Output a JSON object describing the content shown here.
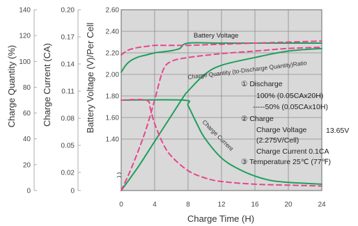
{
  "colors": {
    "grid_bg": "#d9d9d9",
    "grid_line": "#8a8a8a",
    "green": "#1f9e5c",
    "pink": "#e8458b"
  },
  "chart_data": {
    "type": "line",
    "x_axis": {
      "label": "Charge Time (H)",
      "ticks": [
        "0",
        "4",
        "8",
        "12",
        "16",
        "20",
        "24"
      ],
      "range": [
        0,
        24
      ]
    },
    "y_axes": [
      {
        "id": "charge_quantity",
        "label": "Charge Quantity (%)",
        "ticks": [
          "0",
          "20",
          "40",
          "60",
          "80",
          "100",
          "120",
          "140"
        ],
        "range": [
          0,
          140
        ]
      },
      {
        "id": "charge_current",
        "label": "Charge Current (CA)",
        "ticks": [
          "0",
          "0.02",
          "0.05",
          "0.08",
          "0.11",
          "0.14",
          "0.17",
          "0.20"
        ],
        "range": [
          0,
          0.2
        ]
      },
      {
        "id": "battery_voltage",
        "label": "Battery Voltage (V)/Per Cell",
        "ticks": [
          "1.40",
          "1.60",
          "1.80",
          "2.00",
          "2.20",
          "2.40",
          "2.60"
        ],
        "range": [
          1.4,
          2.6
        ]
      }
    ],
    "curve_labels": {
      "battery_voltage": "Battery Voltage",
      "charge_quantity": "Charge Quantity (to-Discharge Quantity)Ratio",
      "charge_current": "Charge Current"
    },
    "annotations": [
      "① Discharge",
      "100% (0.05CAx20H)",
      "-----50% (0.05CAx10H)",
      "② Charge",
      "Charge Voltage",
      "13.65V",
      "(2.275V/Cell)",
      "Charge Current 0.1CA",
      "③ Temperature 25℃ (77℉)"
    ],
    "series": [
      {
        "key": "battery_voltage_100",
        "axis": "battery_voltage",
        "style": "solid",
        "color": "green",
        "x": [
          0,
          0.5,
          1,
          2,
          3,
          4,
          5,
          6,
          7,
          8,
          12,
          16,
          20,
          24
        ],
        "y": [
          2.02,
          2.08,
          2.12,
          2.16,
          2.18,
          2.2,
          2.21,
          2.22,
          2.24,
          2.29,
          2.29,
          2.29,
          2.29,
          2.29
        ]
      },
      {
        "key": "battery_voltage_50",
        "axis": "battery_voltage",
        "style": "dashed",
        "color": "pink",
        "x": [
          0,
          0.5,
          1,
          2,
          3,
          4,
          5,
          6,
          8,
          12,
          16,
          20,
          24
        ],
        "y": [
          2.18,
          2.21,
          2.23,
          2.25,
          2.26,
          2.27,
          2.27,
          2.27,
          2.27,
          2.28,
          2.29,
          2.3,
          2.31
        ]
      },
      {
        "key": "charge_quantity_100",
        "axis": "charge_quantity",
        "style": "solid",
        "color": "green",
        "x": [
          0,
          2,
          4,
          6,
          7.5,
          8,
          10,
          12,
          16,
          20,
          24
        ],
        "y": [
          0,
          18,
          38,
          58,
          73,
          77,
          90,
          97,
          103,
          108,
          110
        ]
      },
      {
        "key": "charge_quantity_50",
        "axis": "charge_quantity",
        "style": "dashed",
        "color": "pink",
        "x": [
          0,
          1,
          2,
          3,
          4,
          5,
          6,
          8,
          12,
          16,
          20,
          24
        ],
        "y": [
          0,
          14,
          30,
          48,
          70,
          93,
          100,
          103,
          106,
          108,
          110,
          111
        ]
      },
      {
        "key": "charge_current_100",
        "axis": "charge_current",
        "style": "solid",
        "color": "green",
        "x": [
          0,
          7.5,
          8,
          9,
          10,
          12,
          14,
          16,
          18,
          20,
          22,
          24
        ],
        "y": [
          0.1,
          0.1,
          0.094,
          0.075,
          0.058,
          0.036,
          0.024,
          0.016,
          0.011,
          0.009,
          0.008,
          0.007
        ]
      },
      {
        "key": "charge_current_50",
        "axis": "charge_current",
        "style": "dashed",
        "color": "pink",
        "x": [
          0,
          3,
          3.5,
          4,
          5,
          6,
          8,
          10,
          12,
          16,
          20,
          24
        ],
        "y": [
          0.1,
          0.1,
          0.09,
          0.074,
          0.052,
          0.038,
          0.022,
          0.014,
          0.01,
          0.007,
          0.006,
          0.005
        ]
      }
    ]
  }
}
